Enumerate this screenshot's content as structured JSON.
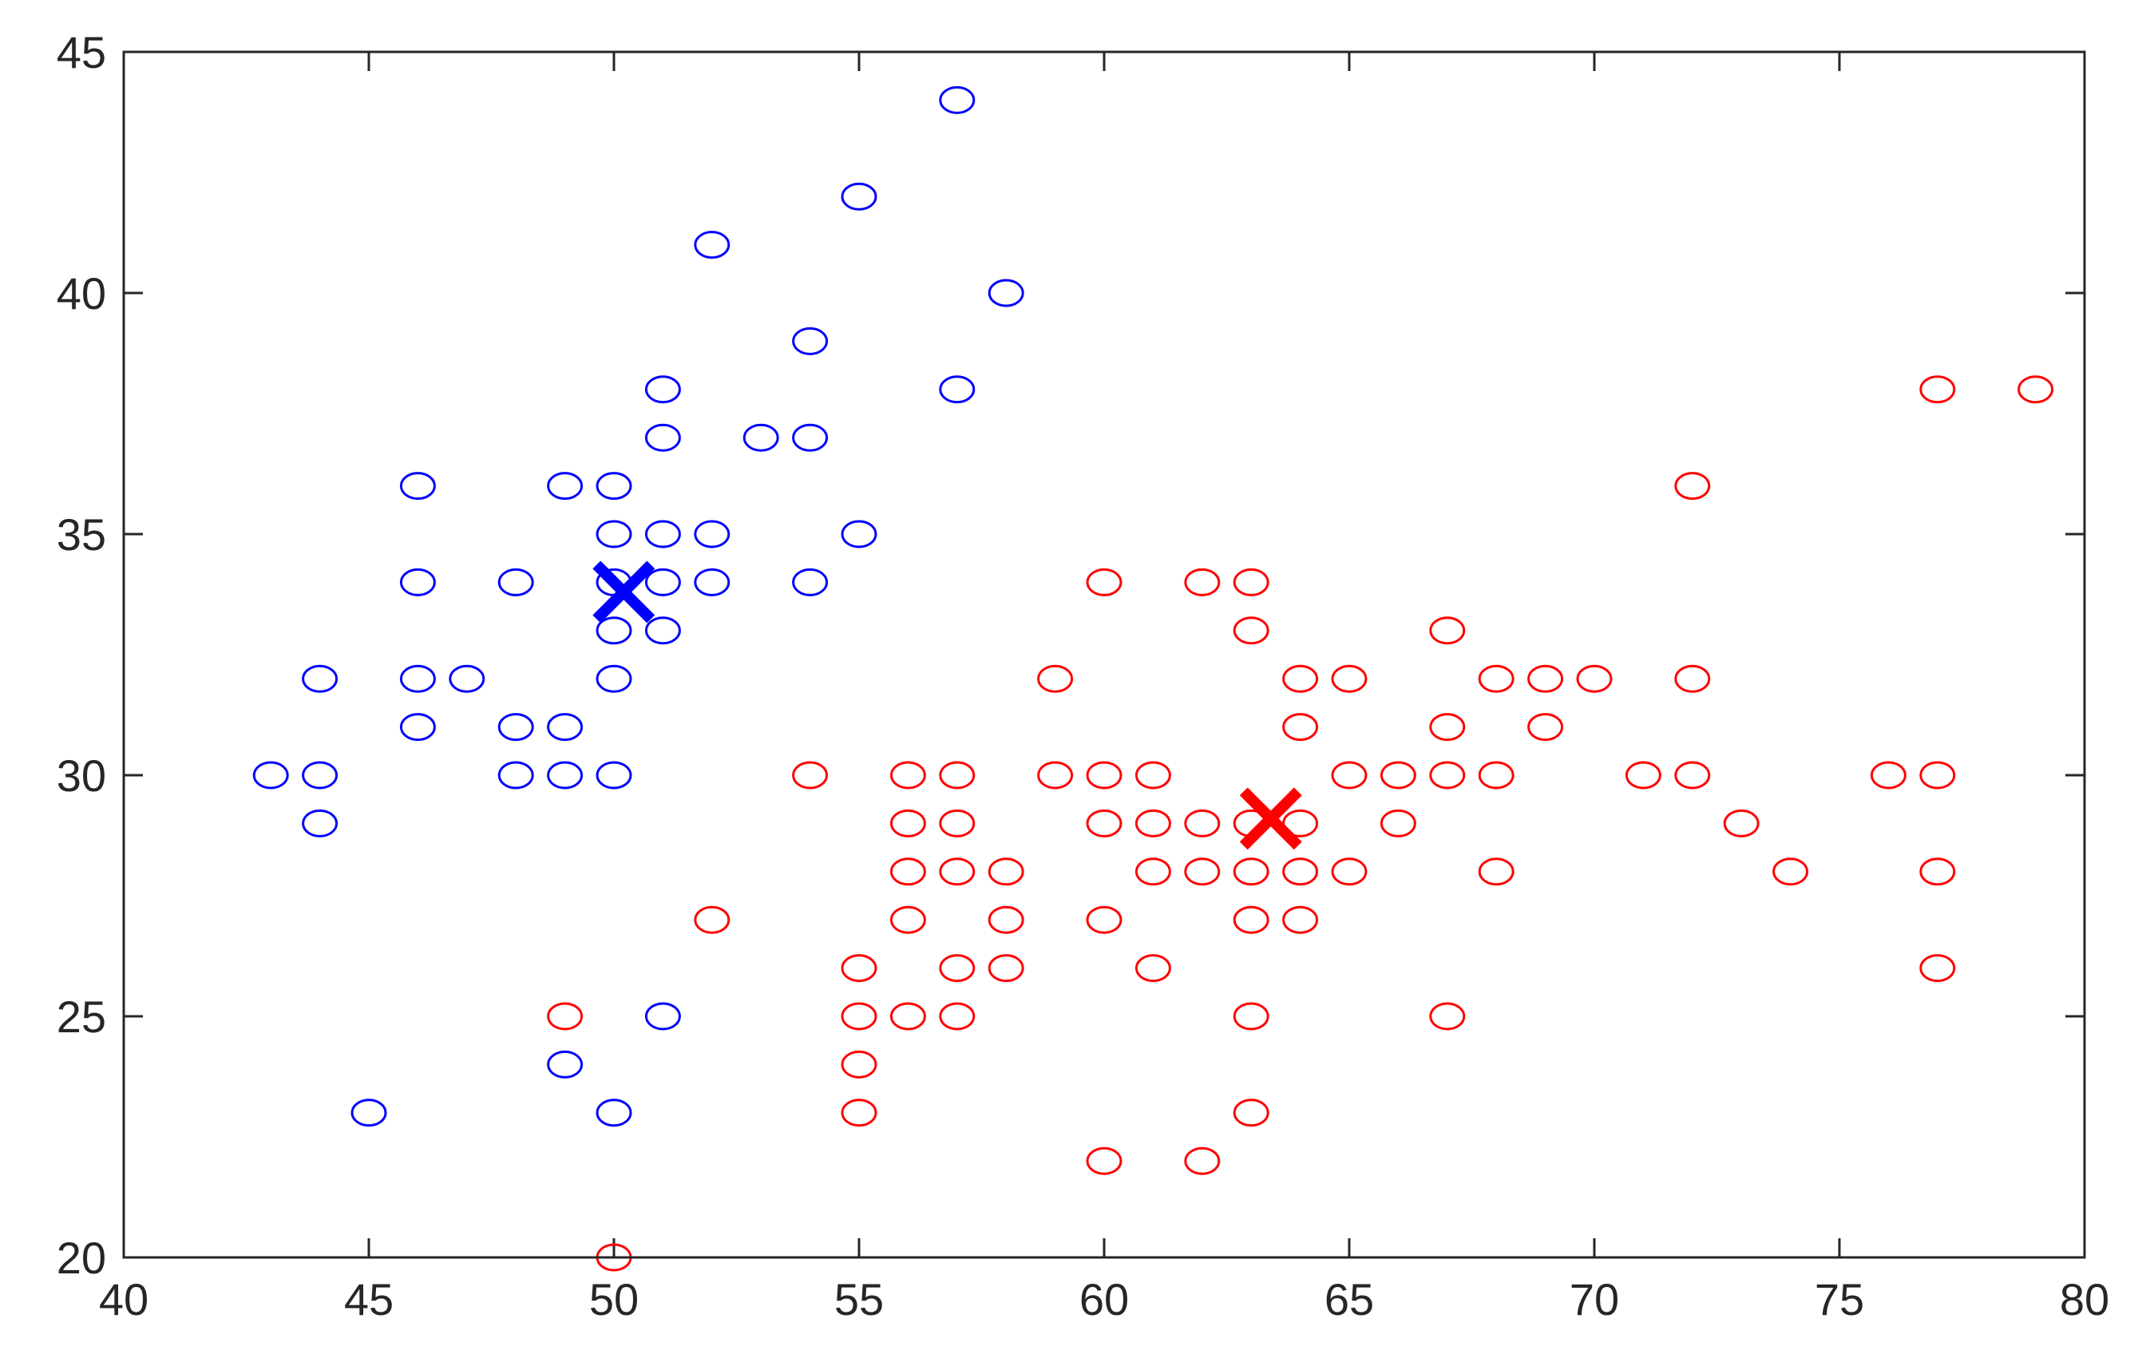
{
  "chart_data": {
    "type": "scatter",
    "title": "",
    "xlabel": "",
    "ylabel": "",
    "xlim": [
      40,
      80
    ],
    "ylim": [
      20,
      45
    ],
    "xticks": [
      "40",
      "45",
      "50",
      "55",
      "60",
      "65",
      "70",
      "75",
      "80"
    ],
    "yticks": [
      "20",
      "25",
      "30",
      "35",
      "40",
      "45"
    ],
    "grid": false,
    "legend": "none",
    "series": [
      {
        "marker": "circle",
        "color": "#0000ff",
        "points": [
          [
            57,
            44
          ],
          [
            55,
            42
          ],
          [
            52,
            41
          ],
          [
            58,
            40
          ],
          [
            54,
            39
          ],
          [
            51,
            38
          ],
          [
            57,
            38
          ],
          [
            51,
            37
          ],
          [
            53,
            37
          ],
          [
            54,
            37
          ],
          [
            46,
            36
          ],
          [
            49,
            36
          ],
          [
            50,
            36
          ],
          [
            50,
            35
          ],
          [
            51,
            35
          ],
          [
            52,
            35
          ],
          [
            55,
            35
          ],
          [
            46,
            34
          ],
          [
            48,
            34
          ],
          [
            50,
            34
          ],
          [
            51,
            34
          ],
          [
            52,
            34
          ],
          [
            54,
            34
          ],
          [
            50,
            33
          ],
          [
            51,
            33
          ],
          [
            44,
            32
          ],
          [
            46,
            32
          ],
          [
            47,
            32
          ],
          [
            50,
            32
          ],
          [
            46,
            31
          ],
          [
            48,
            31
          ],
          [
            49,
            31
          ],
          [
            43,
            30
          ],
          [
            44,
            30
          ],
          [
            48,
            30
          ],
          [
            49,
            30
          ],
          [
            50,
            30
          ],
          [
            44,
            29
          ],
          [
            51,
            25
          ],
          [
            49,
            24
          ],
          [
            45,
            23
          ],
          [
            50,
            23
          ]
        ]
      },
      {
        "marker": "circle",
        "color": "#ff0000",
        "points": [
          [
            77,
            38
          ],
          [
            79,
            38
          ],
          [
            72,
            36
          ],
          [
            60,
            34
          ],
          [
            62,
            34
          ],
          [
            63,
            34
          ],
          [
            63,
            33
          ],
          [
            67,
            33
          ],
          [
            59,
            32
          ],
          [
            64,
            32
          ],
          [
            65,
            32
          ],
          [
            68,
            32
          ],
          [
            69,
            32
          ],
          [
            70,
            32
          ],
          [
            72,
            32
          ],
          [
            64,
            31
          ],
          [
            67,
            31
          ],
          [
            69,
            31
          ],
          [
            54,
            30
          ],
          [
            56,
            30
          ],
          [
            57,
            30
          ],
          [
            59,
            30
          ],
          [
            60,
            30
          ],
          [
            61,
            30
          ],
          [
            65,
            30
          ],
          [
            66,
            30
          ],
          [
            67,
            30
          ],
          [
            68,
            30
          ],
          [
            71,
            30
          ],
          [
            72,
            30
          ],
          [
            76,
            30
          ],
          [
            77,
            30
          ],
          [
            56,
            29
          ],
          [
            57,
            29
          ],
          [
            60,
            29
          ],
          [
            61,
            29
          ],
          [
            62,
            29
          ],
          [
            63,
            29
          ],
          [
            64,
            29
          ],
          [
            66,
            29
          ],
          [
            73,
            29
          ],
          [
            56,
            28
          ],
          [
            57,
            28
          ],
          [
            58,
            28
          ],
          [
            61,
            28
          ],
          [
            62,
            28
          ],
          [
            63,
            28
          ],
          [
            64,
            28
          ],
          [
            65,
            28
          ],
          [
            68,
            28
          ],
          [
            74,
            28
          ],
          [
            77,
            28
          ],
          [
            52,
            27
          ],
          [
            56,
            27
          ],
          [
            58,
            27
          ],
          [
            60,
            27
          ],
          [
            63,
            27
          ],
          [
            64,
            27
          ],
          [
            55,
            26
          ],
          [
            57,
            26
          ],
          [
            58,
            26
          ],
          [
            61,
            26
          ],
          [
            77,
            26
          ],
          [
            49,
            25
          ],
          [
            55,
            25
          ],
          [
            56,
            25
          ],
          [
            57,
            25
          ],
          [
            63,
            25
          ],
          [
            67,
            25
          ],
          [
            55,
            24
          ],
          [
            55,
            23
          ],
          [
            63,
            23
          ],
          [
            60,
            22
          ],
          [
            62,
            22
          ],
          [
            50,
            20
          ]
        ]
      }
    ],
    "centroids": [
      {
        "marker": "x",
        "color": "#0000ff",
        "x": 50.2,
        "y": 33.8
      },
      {
        "marker": "x",
        "color": "#ff0000",
        "x": 63.4,
        "y": 29.1
      }
    ]
  }
}
